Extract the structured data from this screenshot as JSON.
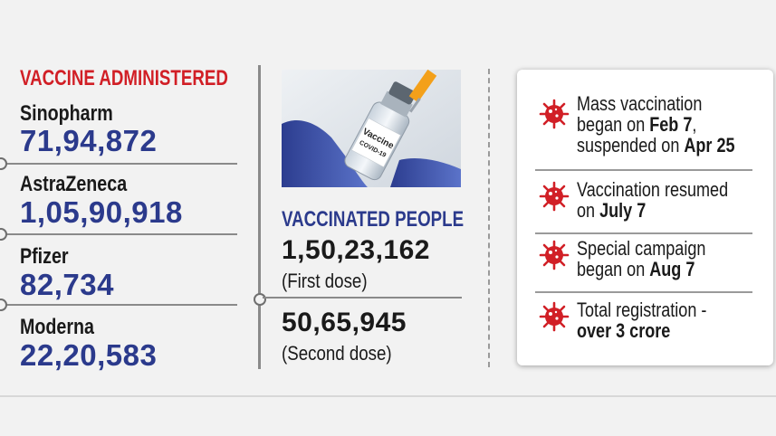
{
  "left": {
    "title": "VACCINE ADMINISTERED",
    "items": [
      {
        "name": "Sinopharm",
        "count": "71,94,872"
      },
      {
        "name": "AstraZeneca",
        "count": "1,05,90,918"
      },
      {
        "name": "Pfizer",
        "count": "82,734"
      },
      {
        "name": "Moderna",
        "count": "22,20,583"
      }
    ]
  },
  "middle": {
    "photo_label": "Vaccine\nCOVID-19",
    "title": "VACCINATED PEOPLE",
    "first_count": "1,50,23,162",
    "first_note": "(First dose)",
    "second_count": "50,65,945",
    "second_note": "(Second dose)"
  },
  "facts": [
    {
      "line1": "Mass vaccination",
      "line2_pre": "began on ",
      "line2_bold": "Feb 7",
      "line2_post": ",",
      "line3_pre": "suspended on ",
      "line3_bold": "Apr 25"
    },
    {
      "line1": "Vaccination resumed",
      "line2_pre": "on ",
      "line2_bold": "July 7"
    },
    {
      "line1": "Special campaign",
      "line2_pre": "began on ",
      "line2_bold": "Aug 7"
    },
    {
      "line1": "Total registration -",
      "line2_bold": "over 3 crore"
    }
  ],
  "colors": {
    "accent_red": "#d11f26",
    "accent_blue": "#2b3a8c"
  },
  "icons": {
    "fact_bullet": "virus-icon"
  }
}
